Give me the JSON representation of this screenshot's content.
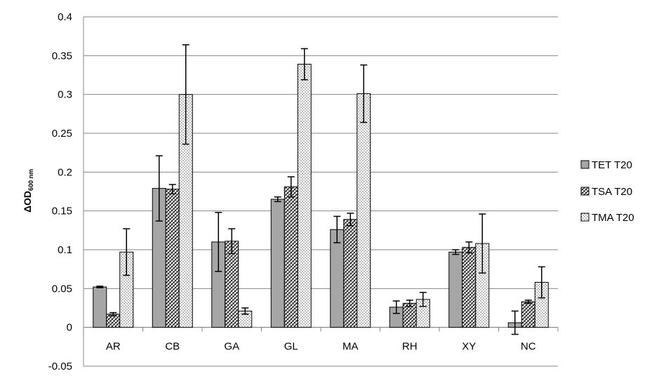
{
  "chart_data": {
    "type": "bar",
    "title": "",
    "xlabel": "",
    "ylabel": {
      "main": "ΔOD",
      "subscript": "600 nm"
    },
    "ylim": [
      -0.05,
      0.4
    ],
    "yticks": [
      -0.05,
      0,
      0.05,
      0.1,
      0.15,
      0.2,
      0.25,
      0.3,
      0.35,
      0.4
    ],
    "ytick_labels": [
      "-0.05",
      "0",
      "0.05",
      "0.1",
      "0.15",
      "0.2",
      "0.25",
      "0.3",
      "0.35",
      "0.4"
    ],
    "grid": true,
    "legend_position": "right",
    "categories": [
      "AR",
      "CB",
      "GA",
      "GL",
      "MA",
      "RH",
      "XY",
      "NC"
    ],
    "series": [
      {
        "name": "TET T20",
        "pattern": "solid-gray",
        "color": "#a6a6a6",
        "values": [
          0.052,
          0.179,
          0.11,
          0.165,
          0.126,
          0.026,
          0.097,
          0.006
        ],
        "errors": [
          0.001,
          0.042,
          0.038,
          0.003,
          0.017,
          0.008,
          0.003,
          0.015
        ]
      },
      {
        "name": "TSA T20",
        "pattern": "crosshatch",
        "color": "#ffffff",
        "values": [
          0.017,
          0.178,
          0.111,
          0.181,
          0.139,
          0.031,
          0.103,
          0.033
        ],
        "errors": [
          0.002,
          0.006,
          0.016,
          0.013,
          0.008,
          0.004,
          0.007,
          0.002
        ]
      },
      {
        "name": "TMA T20",
        "pattern": "dots",
        "color": "#ffffff",
        "values": [
          0.097,
          0.3,
          0.021,
          0.339,
          0.301,
          0.036,
          0.108,
          0.058
        ],
        "errors": [
          0.03,
          0.064,
          0.004,
          0.02,
          0.037,
          0.009,
          0.038,
          0.02
        ]
      }
    ]
  }
}
